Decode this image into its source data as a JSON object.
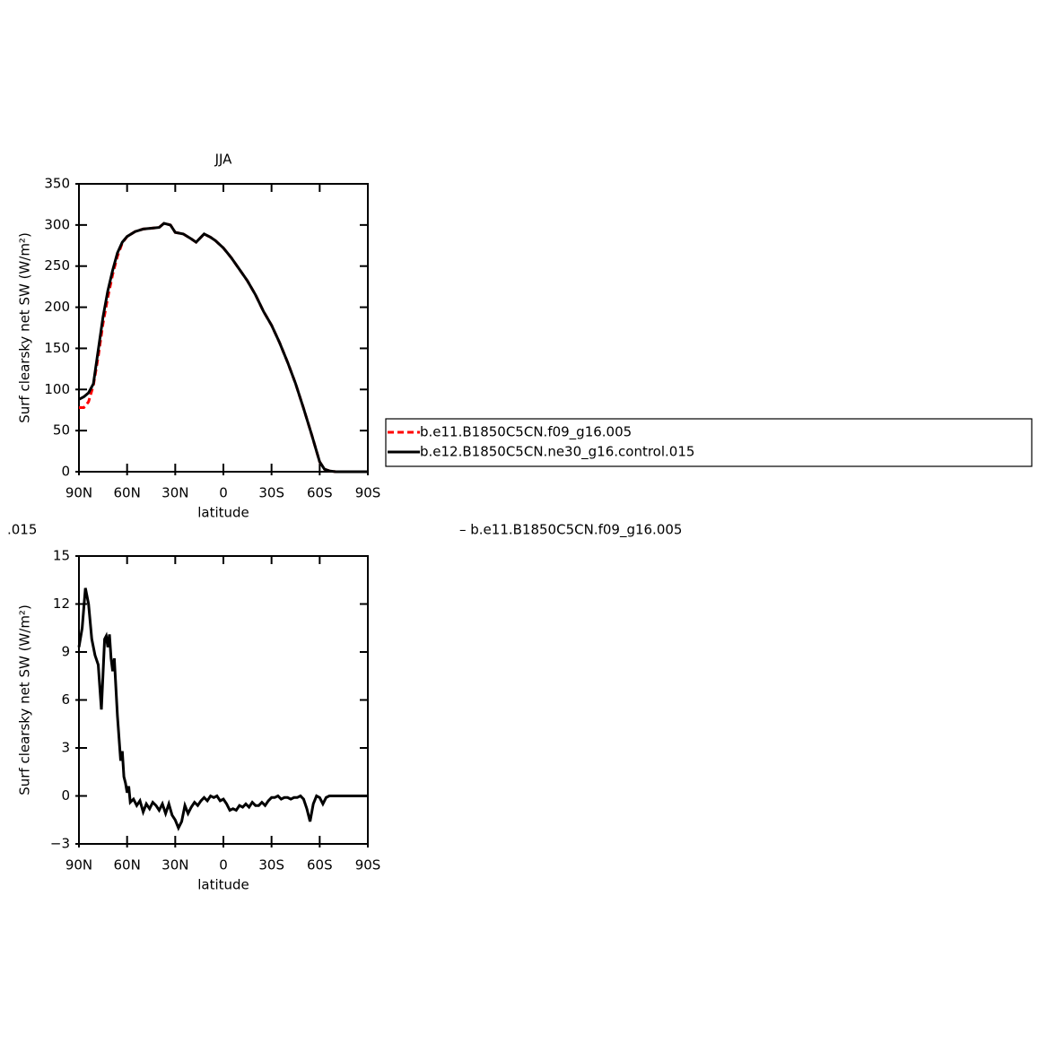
{
  "chart_data": [
    {
      "type": "line",
      "title": "JJA",
      "xlabel": "latitude",
      "ylabel": "Surf clearsky net SW (W/m²)",
      "x": [
        90,
        87,
        84,
        81,
        78,
        75,
        72,
        69,
        66,
        63,
        60,
        55,
        50,
        45,
        40,
        37,
        33,
        30,
        25,
        20,
        17,
        12,
        8,
        5,
        0,
        -5,
        -10,
        -15,
        -20,
        -25,
        -30,
        -35,
        -40,
        -45,
        -50,
        -55,
        -60,
        -63,
        -66,
        -70,
        -80,
        -90
      ],
      "series": [
        {
          "name": "b.e11.B1850C5CN.f09_g16.005",
          "color": "#ff0000",
          "dash": true,
          "values": [
            78,
            78,
            85,
            105,
            140,
            180,
            212,
            240,
            262,
            278,
            286,
            292,
            295,
            296,
            297,
            302,
            300,
            291,
            289,
            283,
            279,
            289,
            285,
            281,
            272,
            260,
            246,
            232,
            215,
            195,
            178,
            157,
            133,
            107,
            77,
            45,
            12,
            3,
            1,
            0,
            0,
            0
          ]
        },
        {
          "name": "b.e12.B1850C5CN.ne30_g16.control.015",
          "color": "#000000",
          "dash": false,
          "values": [
            88,
            91,
            96,
            107,
            148,
            188,
            220,
            245,
            266,
            279,
            286,
            292,
            295,
            296,
            297,
            302,
            300,
            291,
            289,
            283,
            279,
            289,
            285,
            281,
            272,
            260,
            246,
            232,
            215,
            195,
            178,
            157,
            133,
            107,
            77,
            45,
            12,
            3,
            1,
            0,
            0,
            0
          ]
        }
      ],
      "xlim": [
        90,
        -90
      ],
      "xticks": [
        {
          "value": 90,
          "label": "90N"
        },
        {
          "value": 60,
          "label": "60N"
        },
        {
          "value": 30,
          "label": "30N"
        },
        0,
        {
          "value": -30,
          "label": "30S"
        },
        {
          "value": -60,
          "label": "60S"
        },
        {
          "value": -90,
          "label": "90S"
        }
      ],
      "ylim": [
        0,
        350
      ],
      "yticks": [
        0,
        50,
        100,
        150,
        200,
        250,
        300,
        350
      ]
    },
    {
      "type": "line",
      "xlabel": "latitude",
      "ylabel": "Surf clearsky net SW (W/m²)",
      "annotations": [
        ".015",
        "– b.e11.B1850C5CN.f09_g16.005"
      ],
      "x": [
        90,
        88,
        86,
        84,
        82,
        80,
        78,
        76,
        74,
        73,
        72,
        71,
        70,
        69,
        68,
        66,
        64,
        63,
        62,
        61,
        60,
        59,
        58,
        56,
        54,
        52,
        50,
        48,
        46,
        44,
        42,
        40,
        38,
        36,
        34,
        32,
        30,
        28,
        26,
        24,
        22,
        20,
        18,
        16,
        14,
        12,
        10,
        8,
        6,
        4,
        2,
        0,
        -2,
        -4,
        -6,
        -8,
        -10,
        -12,
        -14,
        -16,
        -18,
        -20,
        -22,
        -24,
        -26,
        -28,
        -30,
        -32,
        -34,
        -36,
        -38,
        -40,
        -42,
        -44,
        -46,
        -48,
        -50,
        -52,
        -54,
        -56,
        -58,
        -60,
        -62,
        -64,
        -66,
        -70,
        -90
      ],
      "series": [
        {
          "color": "#000000",
          "dash": false,
          "values": [
            9.3,
            10.5,
            13,
            12,
            9.8,
            8.8,
            8.2,
            5.4,
            9.8,
            10,
            9.3,
            10.1,
            8.6,
            7.8,
            8.6,
            5,
            2.2,
            2.8,
            1.2,
            0.8,
            0.2,
            0.6,
            -0.4,
            -0.2,
            -0.6,
            -0.3,
            -1,
            -0.5,
            -0.8,
            -0.4,
            -0.6,
            -0.9,
            -0.5,
            -1.1,
            -0.5,
            -1.2,
            -1.5,
            -2,
            -1.6,
            -0.6,
            -1.1,
            -0.7,
            -0.4,
            -0.6,
            -0.3,
            -0.1,
            -0.3,
            0,
            -0.1,
            0,
            -0.3,
            -0.2,
            -0.5,
            -0.9,
            -0.8,
            -0.9,
            -0.6,
            -0.7,
            -0.5,
            -0.7,
            -0.4,
            -0.6,
            -0.6,
            -0.4,
            -0.6,
            -0.3,
            -0.1,
            -0.1,
            0,
            -0.2,
            -0.1,
            -0.1,
            -0.2,
            -0.1,
            -0.1,
            0,
            -0.2,
            -0.8,
            -1.6,
            -0.5,
            0,
            -0.1,
            -0.5,
            -0.1,
            0,
            0,
            0
          ]
        }
      ],
      "xlim": [
        90,
        -90
      ],
      "xticks": [
        {
          "value": 90,
          "label": "90N"
        },
        {
          "value": 60,
          "label": "60N"
        },
        {
          "value": 30,
          "label": "30N"
        },
        0,
        {
          "value": -30,
          "label": "30S"
        },
        {
          "value": -60,
          "label": "60S"
        },
        {
          "value": -90,
          "label": "90S"
        }
      ],
      "ylim": [
        -3,
        15
      ],
      "yticks": [
        {
          "value": -3,
          "label": "−3"
        },
        0,
        3,
        6,
        9,
        12,
        15
      ]
    }
  ]
}
